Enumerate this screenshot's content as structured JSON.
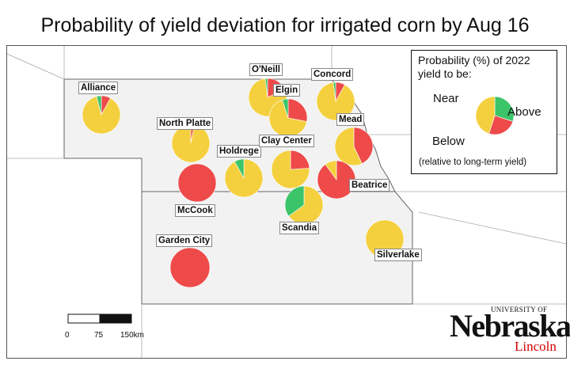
{
  "title": "Probability of yield deviation for irrigated corn by Aug 16",
  "colors": {
    "near": "#f4d03f",
    "above": "#3cc468",
    "below": "#ee4a4a",
    "state_fill": "#f2f2f2",
    "border": "#666666"
  },
  "legend": {
    "title_line1": "Probability (%) of 2022",
    "title_line2": "yield to be:",
    "near": "Near",
    "above": "Above",
    "below": "Below",
    "note": "(relative to long-term yield)",
    "example": {
      "near": 45,
      "above": 30,
      "below": 25
    }
  },
  "stations": [
    {
      "id": "alliance",
      "name": "Alliance",
      "near": 88,
      "above": 4,
      "below": 8
    },
    {
      "id": "north-platte",
      "name": "North Platte",
      "near": 97,
      "above": 0,
      "below": 3
    },
    {
      "id": "mccook",
      "name": "McCook",
      "near": 0,
      "above": 0,
      "below": 100
    },
    {
      "id": "garden-city",
      "name": "Garden City",
      "near": 0,
      "above": 0,
      "below": 100
    },
    {
      "id": "holdrege",
      "name": "Holdrege",
      "near": 92,
      "above": 8,
      "below": 0
    },
    {
      "id": "oneill",
      "name": "O'Neill",
      "near": 80,
      "above": 2,
      "below": 18
    },
    {
      "id": "elgin",
      "name": "Elgin",
      "near": 67,
      "above": 5,
      "below": 28
    },
    {
      "id": "concord",
      "name": "Concord",
      "near": 90,
      "above": 2,
      "below": 8
    },
    {
      "id": "clay-center",
      "name": "Clay Center",
      "near": 76,
      "above": 0,
      "below": 24
    },
    {
      "id": "mead",
      "name": "Mead",
      "near": 57,
      "above": 0,
      "below": 43
    },
    {
      "id": "beatrice",
      "name": "Beatrice",
      "near": 10,
      "above": 0,
      "below": 90
    },
    {
      "id": "scandia",
      "name": "Scandia",
      "near": 65,
      "above": 35,
      "below": 0
    },
    {
      "id": "silverlake",
      "name": "Silverlake",
      "near": 100,
      "above": 0,
      "below": 0
    }
  ],
  "scale": {
    "labels": [
      "0",
      "75",
      "150km"
    ]
  },
  "logo": {
    "top": "UNIVERSITY OF",
    "main": "Nebraska",
    "sub": "Lincoln"
  }
}
